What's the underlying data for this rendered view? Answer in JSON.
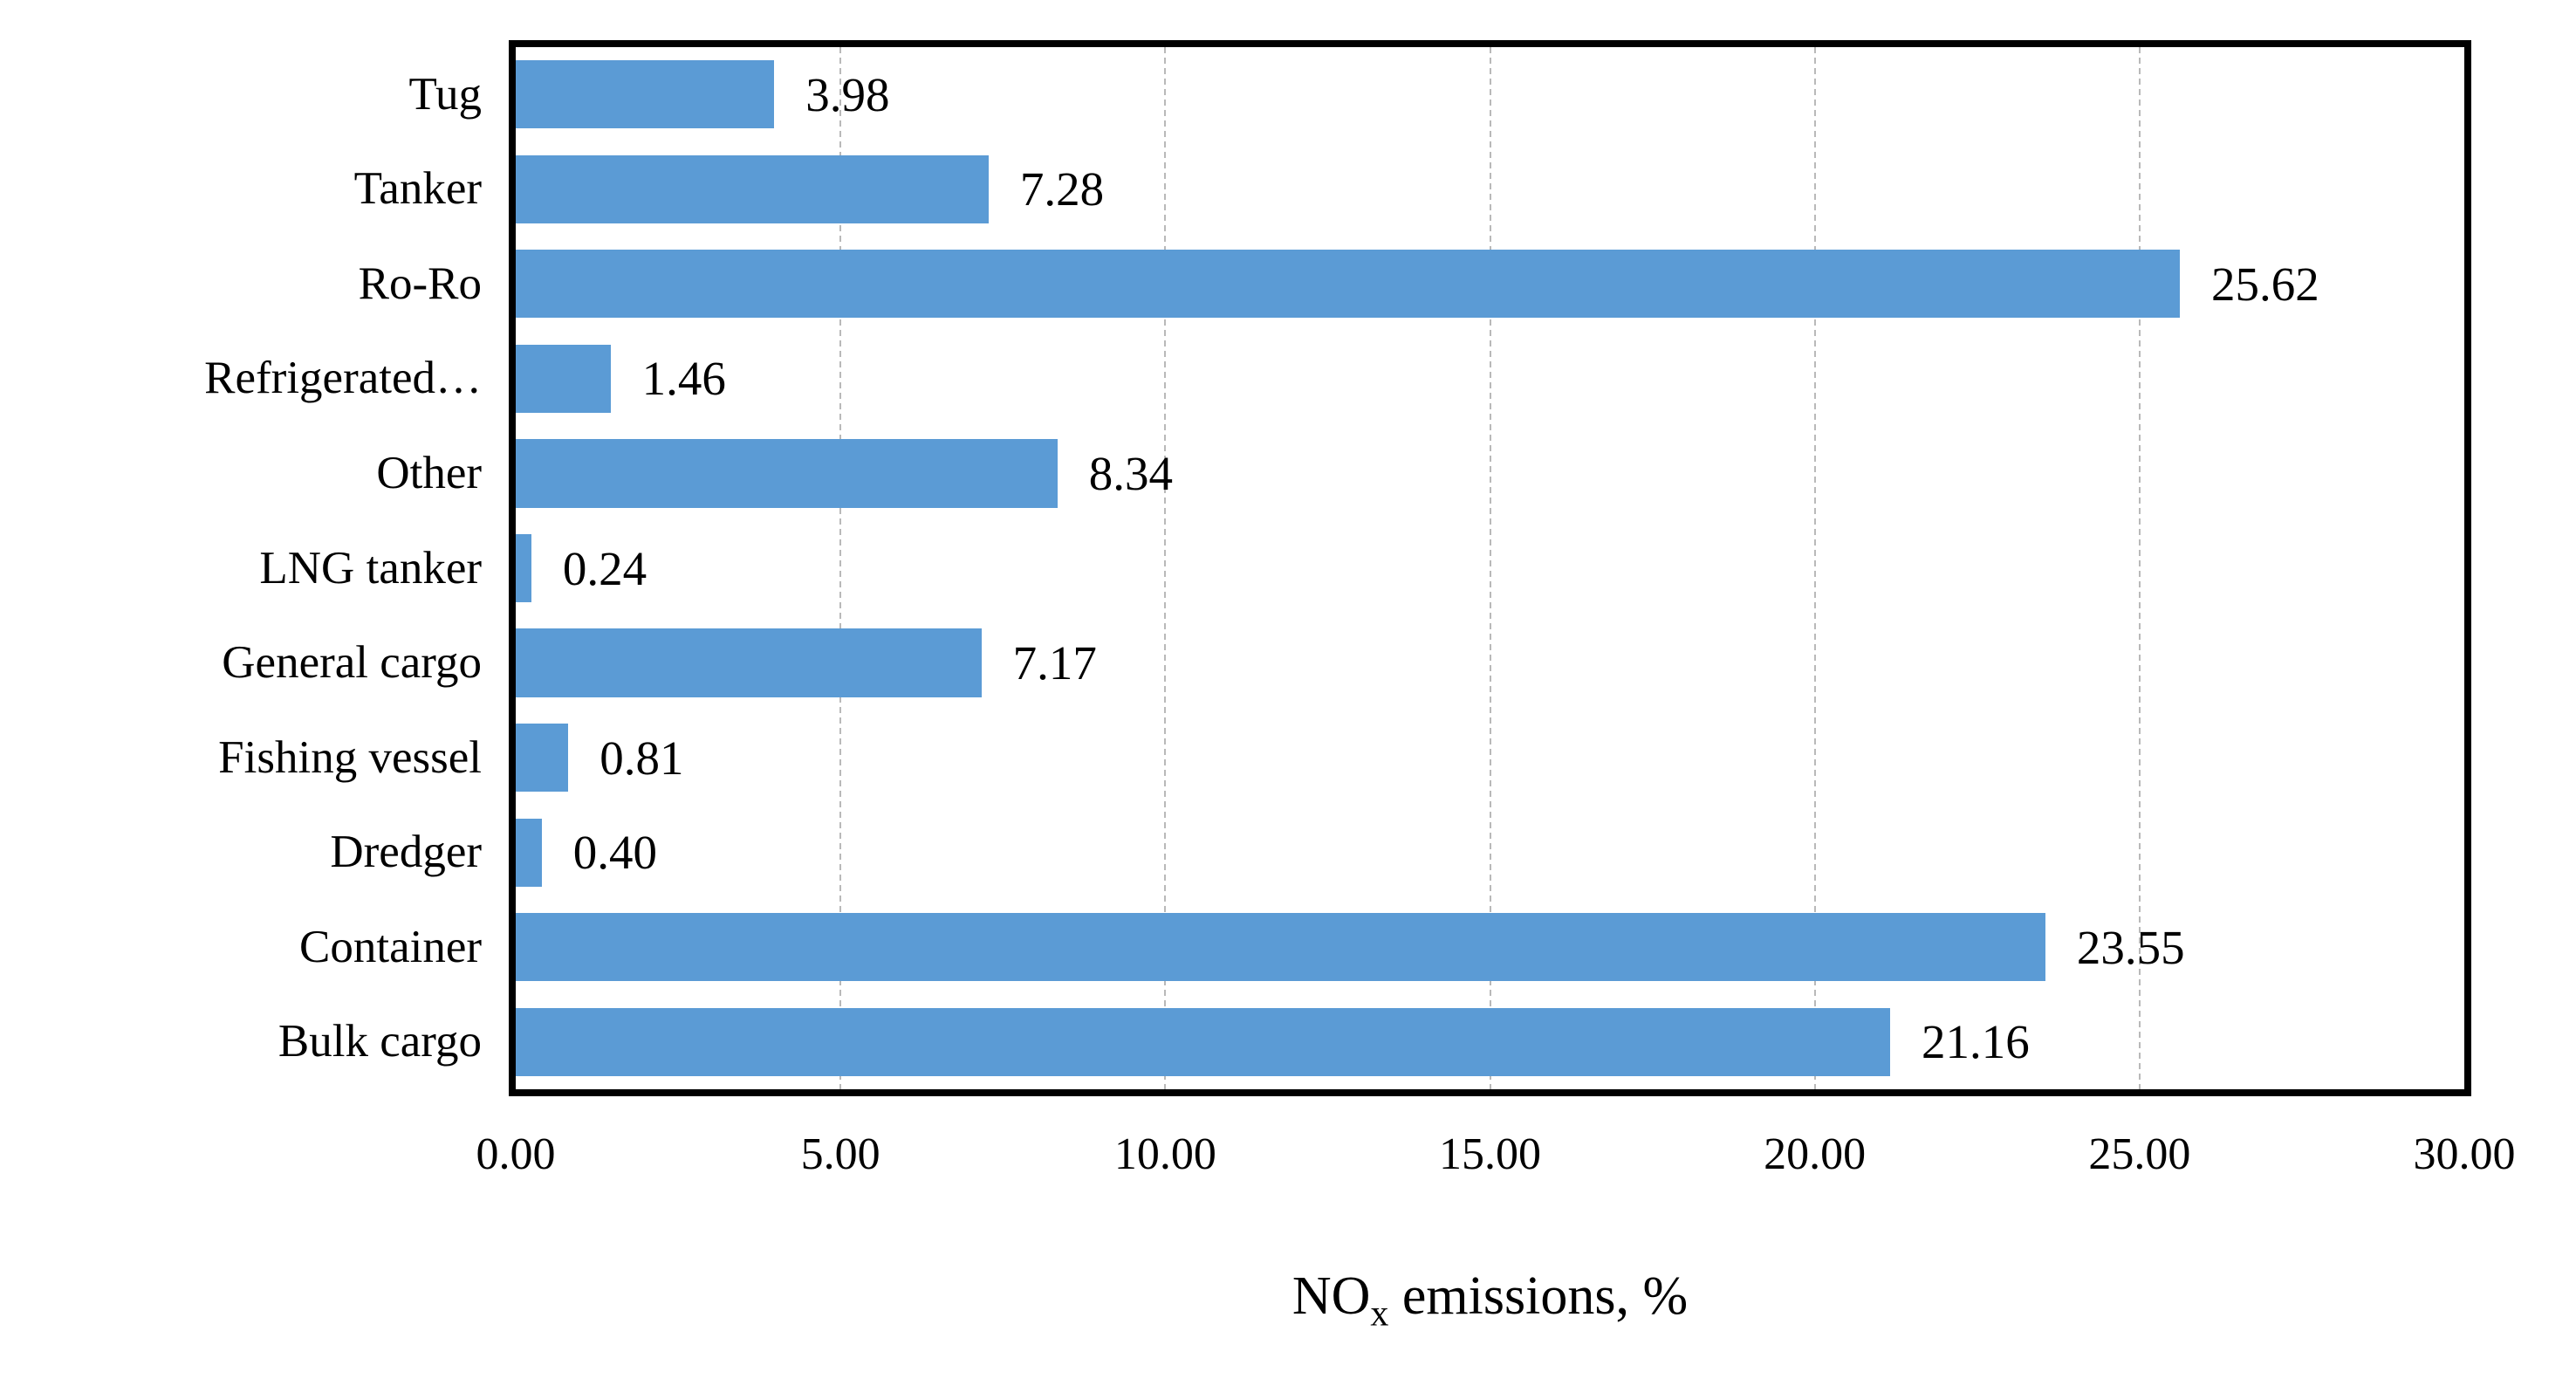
{
  "chart_data": {
    "type": "bar",
    "orientation": "horizontal",
    "title": "",
    "xlabel": "NOx emissions, %",
    "xlabel_parts": {
      "prefix": "NO",
      "sub": "x",
      "suffix": " emissions, %"
    },
    "ylabel": "",
    "categories": [
      "Tug",
      "Tanker",
      "Ro-Ro",
      "Refrigerated…",
      "Other",
      "LNG tanker",
      "General cargo",
      "Fishing vessel",
      "Dredger",
      "Container",
      "Bulk cargo"
    ],
    "values": [
      3.98,
      7.28,
      25.62,
      1.46,
      8.34,
      0.24,
      7.17,
      0.81,
      0.4,
      23.55,
      21.16
    ],
    "value_labels": [
      "3.98",
      "7.28",
      "25.62",
      "1.46",
      "8.34",
      "0.24",
      "7.17",
      "0.81",
      "0.40",
      "23.55",
      "21.16"
    ],
    "xlim": [
      0,
      30
    ],
    "xticks": [
      "0.00",
      "5.00",
      "10.00",
      "15.00",
      "20.00",
      "25.00",
      "30.00"
    ],
    "grid": "vertical-dashed",
    "legend": "none",
    "colors": {
      "bar": "#5B9BD5",
      "gridline": "#B9B9B9",
      "plot_border": "#000000",
      "text": "#000000"
    }
  }
}
